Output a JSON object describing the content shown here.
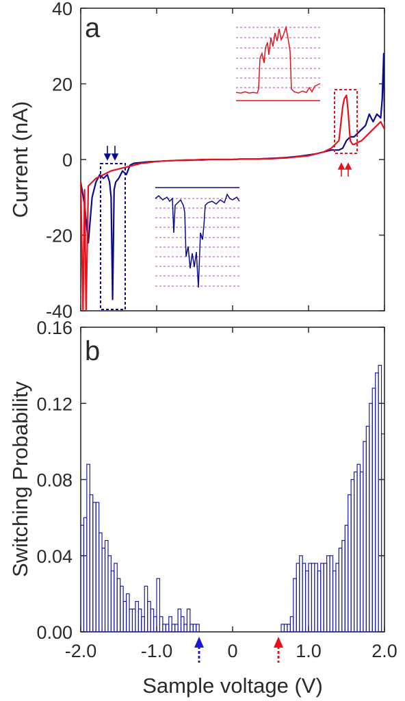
{
  "chart_data": [
    {
      "panel": "a",
      "type": "line",
      "ylabel": "Current (nA)",
      "xlim": [
        -2.0,
        2.0
      ],
      "ylim": [
        -40,
        40
      ],
      "yticks": [
        "40",
        "20",
        "0",
        "-20",
        "-40"
      ],
      "ytick_values": [
        40,
        20,
        0,
        -20,
        -40
      ],
      "series": [
        {
          "color": "#0a0a8c",
          "x": [
            -2.0,
            -1.95,
            -1.9,
            -1.85,
            -1.8,
            -1.75,
            -1.7,
            -1.65,
            -1.62,
            -1.6,
            -1.58,
            -1.56,
            -1.54,
            -1.5,
            -1.45,
            -1.4,
            -1.35,
            -1.3,
            -1.2,
            -1.1,
            -1.0,
            -0.9,
            -0.8,
            -0.7,
            -0.6,
            -0.5,
            -0.4,
            -0.3,
            -0.2,
            -0.1,
            0.0,
            0.1,
            0.2,
            0.3,
            0.4,
            0.5,
            0.6,
            0.7,
            0.8,
            0.9,
            1.0,
            1.1,
            1.2,
            1.3,
            1.4,
            1.45,
            1.5,
            1.55,
            1.6,
            1.65,
            1.7,
            1.75,
            1.8,
            1.85,
            1.9,
            1.95,
            1.97,
            1.99,
            2.0
          ],
          "y": [
            -6,
            -12,
            -22,
            -10,
            -6,
            -4,
            -5,
            -4,
            -6,
            -10,
            -37,
            -8,
            -6,
            -5,
            -3,
            -4,
            -1.5,
            -1,
            -0.8,
            -0.6,
            -0.5,
            -0.4,
            -0.3,
            -0.2,
            -0.2,
            -0.1,
            -0.1,
            0.0,
            0.0,
            0.0,
            0.0,
            0.1,
            0.1,
            0.1,
            0.2,
            0.3,
            0.4,
            0.5,
            0.7,
            0.9,
            1.2,
            1.5,
            2.0,
            2.5,
            2.5,
            3.0,
            5.0,
            6.0,
            6.0,
            7.0,
            8.0,
            9.0,
            12.0,
            10.0,
            12.0,
            11.0,
            16.0,
            28.0,
            10.0
          ]
        },
        {
          "color": "#e8101a",
          "x": [
            -2.0,
            -1.97,
            -1.95,
            -1.93,
            -1.9,
            -1.85,
            -1.8,
            -1.7,
            -1.6,
            -1.5,
            -1.4,
            -1.3,
            -1.2,
            -1.1,
            -1.0,
            -0.9,
            -0.8,
            -0.7,
            -0.6,
            -0.5,
            -0.4,
            -0.3,
            -0.2,
            -0.1,
            0.0,
            0.1,
            0.2,
            0.3,
            0.4,
            0.5,
            0.6,
            0.7,
            0.8,
            0.9,
            1.0,
            1.1,
            1.2,
            1.3,
            1.35,
            1.4,
            1.45,
            1.47,
            1.5,
            1.52,
            1.55,
            1.58,
            1.6,
            1.65,
            1.7,
            1.75,
            1.8,
            1.85,
            1.9,
            1.95,
            2.0
          ],
          "y": [
            -6,
            -40,
            -8,
            -40,
            -7,
            -6,
            -5,
            -4,
            -3,
            -2.5,
            -2,
            -1.5,
            -1,
            -0.8,
            -0.5,
            -0.4,
            -0.3,
            -0.2,
            -0.1,
            -0.1,
            0.0,
            0.0,
            0.0,
            0.0,
            0.0,
            0.1,
            0.1,
            0.1,
            0.2,
            0.2,
            0.3,
            0.4,
            0.6,
            0.8,
            1.0,
            1.5,
            2.0,
            3.0,
            4.0,
            5.0,
            14.0,
            16.0,
            17.0,
            13.0,
            5.0,
            4.0,
            4.0,
            4.5,
            5.0,
            6.0,
            7.0,
            8.0,
            9.0,
            10.0,
            8.0
          ]
        }
      ]
    },
    {
      "panel": "b",
      "type": "bar",
      "ylabel": "Switching Probability",
      "xlabel": "Sample voltage (V)",
      "xlim": [
        -2.0,
        2.0
      ],
      "ylim": [
        0.0,
        0.16
      ],
      "xticks": [
        "-2.0",
        "-1.0",
        "0",
        "1.0",
        "2.0"
      ],
      "xtick_values": [
        -2.0,
        -1.0,
        0.0,
        1.0,
        2.0
      ],
      "yticks": [
        "0.16",
        "0.12",
        "0.08",
        "0.04",
        "0.00"
      ],
      "ytick_values": [
        0.16,
        0.12,
        0.08,
        0.04,
        0.0
      ],
      "bin_width": 0.04,
      "bin_starts": [
        -2.0,
        -1.96,
        -1.92,
        -1.88,
        -1.84,
        -1.8,
        -1.76,
        -1.72,
        -1.68,
        -1.64,
        -1.6,
        -1.56,
        -1.52,
        -1.48,
        -1.44,
        -1.4,
        -1.36,
        -1.32,
        -1.28,
        -1.24,
        -1.2,
        -1.16,
        -1.12,
        -1.08,
        -1.04,
        -1.0,
        -0.96,
        -0.92,
        -0.88,
        -0.84,
        -0.8,
        -0.76,
        -0.72,
        -0.68,
        -0.64,
        -0.6,
        -0.56,
        -0.52,
        -0.48,
        0.64,
        0.68,
        0.72,
        0.76,
        0.8,
        0.84,
        0.88,
        0.92,
        0.96,
        1.0,
        1.04,
        1.08,
        1.12,
        1.16,
        1.2,
        1.24,
        1.28,
        1.32,
        1.36,
        1.4,
        1.44,
        1.48,
        1.52,
        1.56,
        1.6,
        1.64,
        1.68,
        1.72,
        1.76,
        1.8,
        1.84,
        1.88,
        1.92,
        1.96
      ],
      "values": [
        0.056,
        0.06,
        0.088,
        0.072,
        0.068,
        0.068,
        0.052,
        0.044,
        0.048,
        0.04,
        0.032,
        0.036,
        0.028,
        0.024,
        0.016,
        0.02,
        0.012,
        0.012,
        0.016,
        0.012,
        0.008,
        0.024,
        0.016,
        0.012,
        0.008,
        0.028,
        0.008,
        0.004,
        0.004,
        0.008,
        0.004,
        0.004,
        0.012,
        0.008,
        0.004,
        0.012,
        0.004,
        0.004,
        0.004,
        0.004,
        0.004,
        0.004,
        0.008,
        0.028,
        0.036,
        0.04,
        0.036,
        0.032,
        0.036,
        0.036,
        0.036,
        0.032,
        0.036,
        0.036,
        0.04,
        0.04,
        0.032,
        0.036,
        0.044,
        0.048,
        0.056,
        0.072,
        0.08,
        0.084,
        0.088,
        0.084,
        0.1,
        0.108,
        0.12,
        0.128,
        0.136,
        0.14,
        0.104
      ],
      "bar_color": "#1a1aa8"
    }
  ]
}
